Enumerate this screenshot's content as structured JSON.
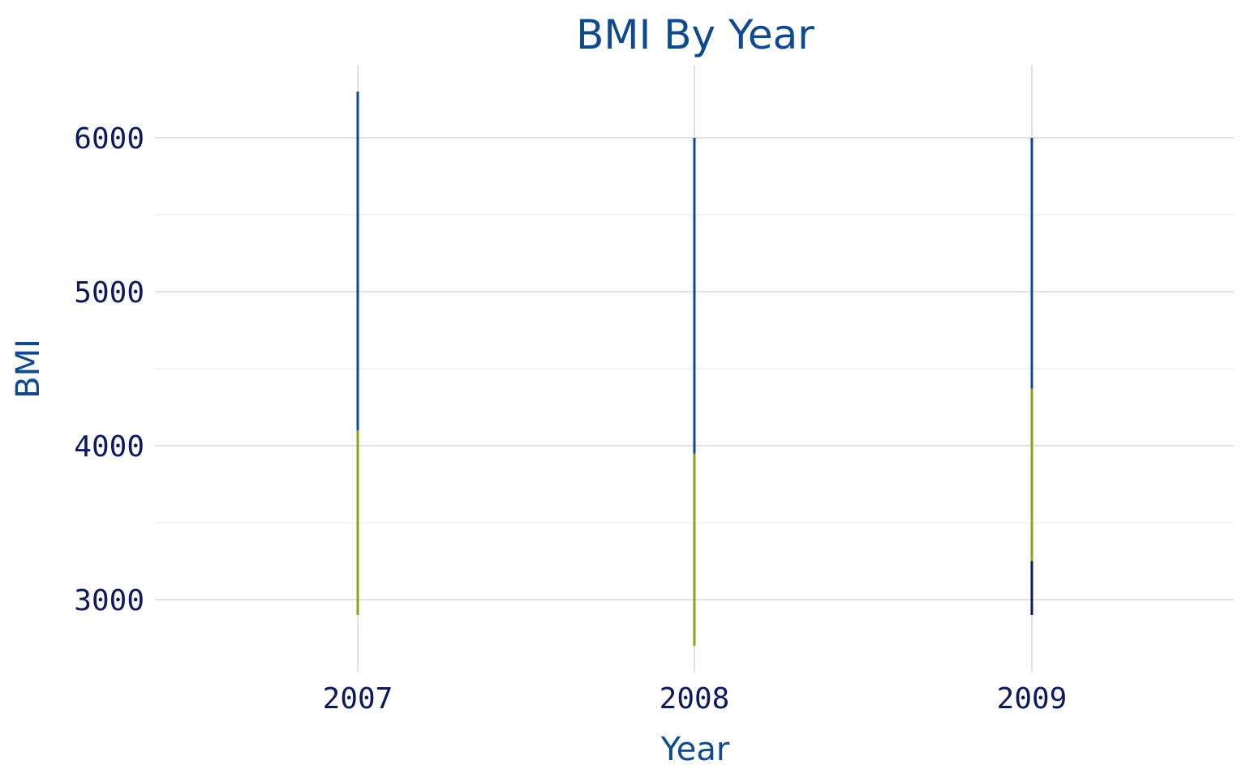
{
  "chart_data": {
    "type": "bar",
    "title": "BMI By Year",
    "xlabel": "Year",
    "ylabel": "BMI",
    "categories": [
      "2007",
      "2008",
      "2009"
    ],
    "ylim": [
      2600,
      6500
    ],
    "yticks": [
      3000,
      4000,
      5000,
      6000
    ],
    "y_minor_ticks": [
      3500,
      4500,
      5500
    ],
    "grid": true,
    "colors": {
      "dark": "#0a1a5c",
      "blue": "#0d4a8f",
      "green": "#8aa31a"
    },
    "segments": [
      {
        "category": "2007",
        "y0": 4100,
        "y1": 6300,
        "color": "#0d4a8f"
      },
      {
        "category": "2007",
        "y0": 3250,
        "y1": 4680,
        "color": "#0d4a8f"
      },
      {
        "category": "2007",
        "y0": 2900,
        "y1": 4100,
        "color": "#8aa31a"
      },
      {
        "category": "2008",
        "y0": 3950,
        "y1": 6000,
        "color": "#0d4a8f"
      },
      {
        "category": "2008",
        "y0": 2700,
        "y1": 3950,
        "color": "#8aa31a"
      },
      {
        "category": "2009",
        "y0": 4850,
        "y1": 6000,
        "color": "#0d4a8f"
      },
      {
        "category": "2009",
        "y0": 4370,
        "y1": 5750,
        "color": "#0d4a8f"
      },
      {
        "category": "2009",
        "y0": 3250,
        "y1": 4370,
        "color": "#8aa31a"
      },
      {
        "category": "2009",
        "y0": 2900,
        "y1": 3250,
        "color": "#0a1a5c"
      }
    ]
  }
}
